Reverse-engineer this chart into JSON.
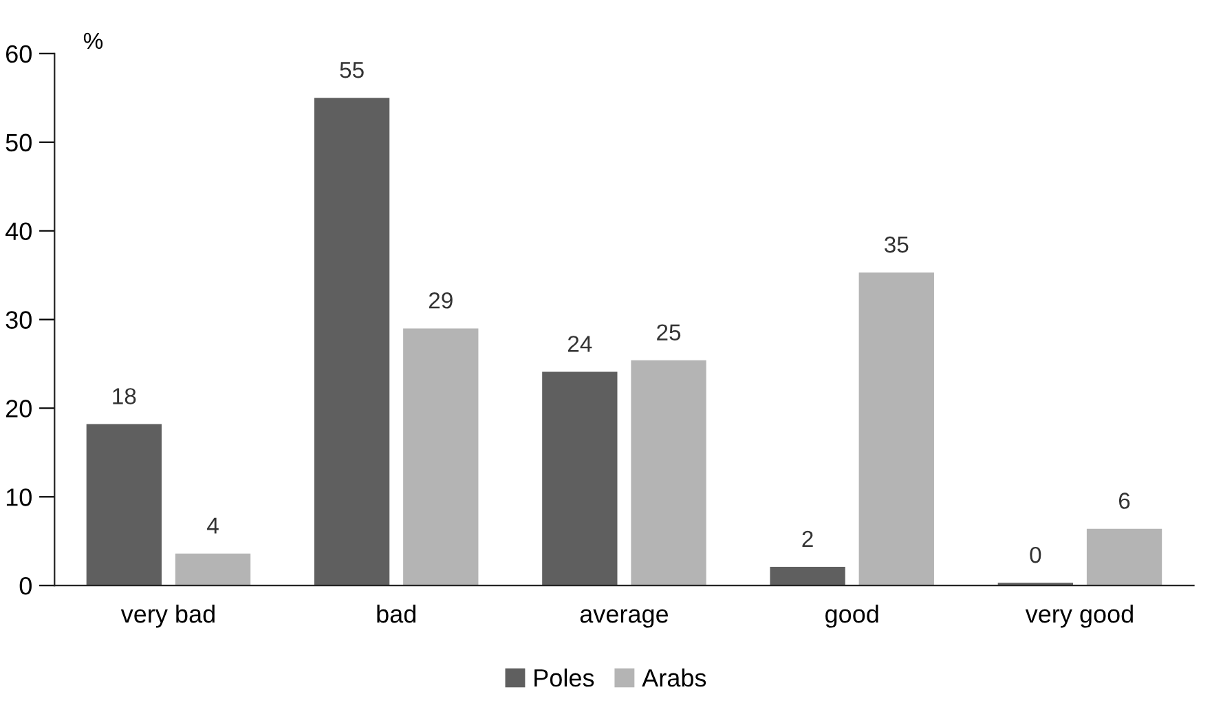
{
  "chart_data": {
    "type": "bar",
    "ylabel": "%",
    "categories": [
      "very bad",
      "bad",
      "average",
      "good",
      "very good"
    ],
    "series": [
      {
        "name": "Poles",
        "color": "#5f5f5f",
        "values": [
          18.2,
          55,
          24.1,
          2.1,
          0.3
        ],
        "value_labels": [
          "18",
          "55",
          "24",
          "2",
          "0"
        ]
      },
      {
        "name": "Arabs",
        "color": "#b4b4b4",
        "values": [
          3.6,
          29,
          25.4,
          35.3,
          6.4
        ],
        "value_labels": [
          "4",
          "29",
          "25",
          "35",
          "6"
        ]
      }
    ],
    "ylim": [
      0,
      60
    ],
    "yticks": [
      0,
      10,
      20,
      30,
      40,
      50,
      60
    ],
    "grid": false,
    "legend": "bottom"
  }
}
